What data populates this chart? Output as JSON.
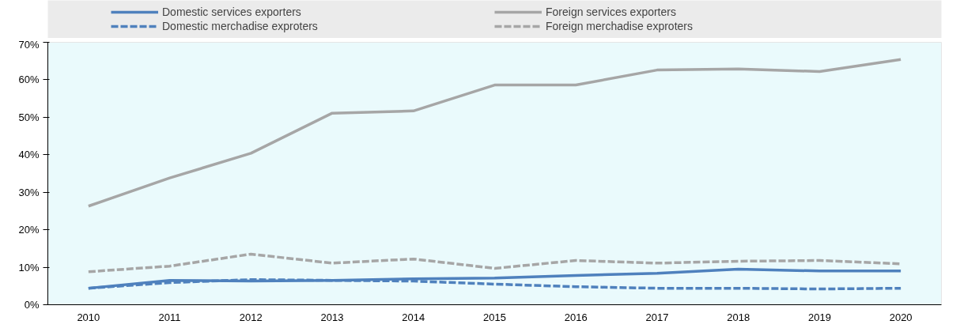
{
  "chart_data": {
    "type": "line",
    "categories": [
      "2010",
      "2011",
      "2012",
      "2013",
      "2014",
      "2015",
      "2016",
      "2017",
      "2018",
      "2019",
      "2020"
    ],
    "series": [
      {
        "name": "Domestic services exporters",
        "color": "#4f81bd",
        "line_style": "solid",
        "values": [
          4.4,
          6.5,
          6.3,
          6.5,
          6.9,
          7.1,
          7.8,
          8.4,
          9.5,
          9.0,
          9.0
        ]
      },
      {
        "name": "Domestic merchadise exproters",
        "color": "#4f81bd",
        "line_style": "dashed",
        "values": [
          4.4,
          5.9,
          6.7,
          6.5,
          6.3,
          5.5,
          4.8,
          4.4,
          4.4,
          4.2,
          4.4
        ]
      },
      {
        "name": "Foreign services exporters",
        "color": "#a6a6a6",
        "line_style": "solid",
        "values": [
          26.3,
          33.8,
          40.4,
          51.1,
          51.7,
          58.6,
          58.6,
          62.6,
          62.9,
          62.2,
          65.4
        ]
      },
      {
        "name": "Foreign merchadise exproters",
        "color": "#a6a6a6",
        "line_style": "dashed",
        "values": [
          8.8,
          10.3,
          13.5,
          11.1,
          12.2,
          9.7,
          11.8,
          11.1,
          11.6,
          11.8,
          10.9
        ]
      }
    ],
    "ylim": [
      0,
      70
    ],
    "yticks": [
      {
        "value": 0,
        "label": "0%"
      },
      {
        "value": 10,
        "label": "10%"
      },
      {
        "value": 20,
        "label": "20%"
      },
      {
        "value": 30,
        "label": "30%"
      },
      {
        "value": 40,
        "label": "40%"
      },
      {
        "value": 50,
        "label": "50%"
      },
      {
        "value": 60,
        "label": "60%"
      },
      {
        "value": 70,
        "label": "70%"
      }
    ],
    "grid": false,
    "legend": "top",
    "marker": "none"
  }
}
